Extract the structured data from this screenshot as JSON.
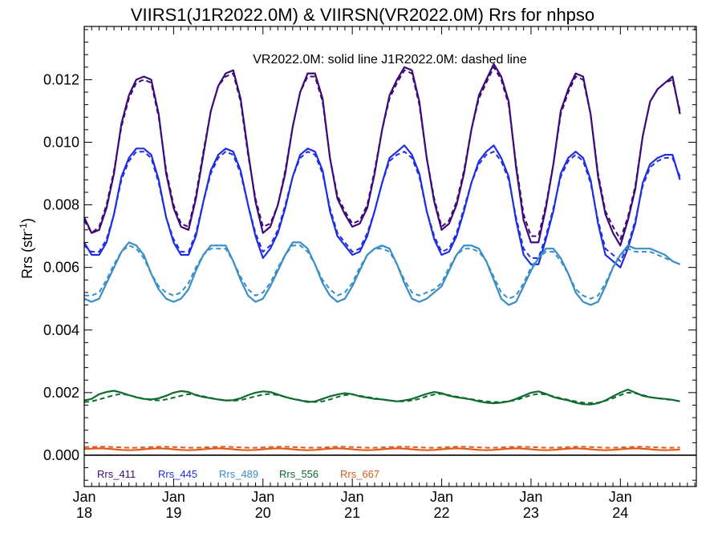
{
  "chart_data": {
    "type": "line",
    "title": "VIIRS1(J1R2022.0M) & VIIRSN(VR2022.0M)  Rrs for nhpso",
    "annotation": "VR2022.0M: solid line   J1R2022.0M: dashed line",
    "ylabel": "Rrs (str",
    "ylabel_sup": "-1",
    "ylabel_close": ")",
    "ylim": [
      -0.001,
      0.0137
    ],
    "xlim": [
      2018.0,
      2024.85
    ],
    "yticks": [
      {
        "v": 0.0,
        "label": "0.000"
      },
      {
        "v": 0.002,
        "label": "0.002"
      },
      {
        "v": 0.004,
        "label": "0.004"
      },
      {
        "v": 0.006,
        "label": "0.006"
      },
      {
        "v": 0.008,
        "label": "0.008"
      },
      {
        "v": 0.01,
        "label": "0.010"
      },
      {
        "v": 0.012,
        "label": "0.012"
      }
    ],
    "xticks": [
      {
        "v": 2018,
        "month": "Jan",
        "year": "18"
      },
      {
        "v": 2019,
        "month": "Jan",
        "year": "19"
      },
      {
        "v": 2020,
        "month": "Jan",
        "year": "20"
      },
      {
        "v": 2021,
        "month": "Jan",
        "year": "21"
      },
      {
        "v": 2022,
        "month": "Jan",
        "year": "22"
      },
      {
        "v": 2023,
        "month": "Jan",
        "year": "23"
      },
      {
        "v": 2024,
        "month": "Jan",
        "year": "24"
      }
    ],
    "x": [
      2018.0,
      2018.083,
      2018.167,
      2018.25,
      2018.333,
      2018.417,
      2018.5,
      2018.583,
      2018.667,
      2018.75,
      2018.833,
      2018.917,
      2019.0,
      2019.083,
      2019.167,
      2019.25,
      2019.333,
      2019.417,
      2019.5,
      2019.583,
      2019.667,
      2019.75,
      2019.833,
      2019.917,
      2020.0,
      2020.083,
      2020.167,
      2020.25,
      2020.333,
      2020.417,
      2020.5,
      2020.583,
      2020.667,
      2020.75,
      2020.833,
      2020.917,
      2021.0,
      2021.083,
      2021.167,
      2021.25,
      2021.333,
      2021.417,
      2021.5,
      2021.583,
      2021.667,
      2021.75,
      2021.833,
      2021.917,
      2022.0,
      2022.083,
      2022.167,
      2022.25,
      2022.333,
      2022.417,
      2022.5,
      2022.583,
      2022.667,
      2022.75,
      2022.833,
      2022.917,
      2023.0,
      2023.083,
      2023.167,
      2023.25,
      2023.333,
      2023.417,
      2023.5,
      2023.583,
      2023.667,
      2023.75,
      2023.833,
      2023.917,
      2024.0,
      2024.083,
      2024.167,
      2024.25,
      2024.333,
      2024.417,
      2024.5,
      2024.583,
      2024.667,
      2024.75,
      2024.833
    ],
    "series": [
      {
        "name": "Rrs_411",
        "color": "#3d0a7a",
        "solid": [
          0.0076,
          0.0071,
          0.0072,
          0.0079,
          0.009,
          0.0106,
          0.0115,
          0.012,
          0.0121,
          0.012,
          0.0109,
          0.009,
          0.0079,
          0.0073,
          0.0072,
          0.0082,
          0.0096,
          0.011,
          0.0118,
          0.0122,
          0.0123,
          0.0114,
          0.0097,
          0.0081,
          0.0071,
          0.0073,
          0.008,
          0.009,
          0.0105,
          0.0116,
          0.0122,
          0.0122,
          0.0114,
          0.0095,
          0.0082,
          0.0077,
          0.0073,
          0.0074,
          0.0079,
          0.009,
          0.0104,
          0.0115,
          0.012,
          0.0124,
          0.0123,
          0.0113,
          0.0095,
          0.0081,
          0.0072,
          0.0074,
          0.008,
          0.009,
          0.0104,
          0.0115,
          0.012,
          0.0125,
          0.0121,
          0.0113,
          0.0092,
          0.0075,
          0.0068,
          0.0068,
          0.0079,
          0.0093,
          0.011,
          0.0117,
          0.0122,
          0.0121,
          0.0109,
          0.0089,
          0.0077,
          0.0071,
          0.0067,
          0.0075,
          0.0085,
          0.0102,
          0.0113,
          0.0117,
          0.0119,
          0.0121,
          0.0109
        ],
        "dashed": [
          0.0075,
          0.0071,
          0.0073,
          0.008,
          0.0091,
          0.0105,
          0.0114,
          0.0119,
          0.012,
          0.0119,
          0.0108,
          0.0091,
          0.008,
          0.0074,
          0.0073,
          0.0083,
          0.0097,
          0.011,
          0.0118,
          0.0121,
          0.0122,
          0.0113,
          0.0096,
          0.0082,
          0.0073,
          0.0074,
          0.008,
          0.0091,
          0.0105,
          0.0116,
          0.0121,
          0.0121,
          0.0113,
          0.0095,
          0.0083,
          0.0078,
          0.0074,
          0.0075,
          0.008,
          0.0091,
          0.0104,
          0.0114,
          0.0119,
          0.0123,
          0.0122,
          0.0112,
          0.0095,
          0.0082,
          0.0073,
          0.0075,
          0.0081,
          0.0091,
          0.0104,
          0.0114,
          0.0119,
          0.0124,
          0.012,
          0.0112,
          0.0093,
          0.0077,
          0.007,
          0.007,
          0.008,
          0.0093,
          0.0109,
          0.0116,
          0.0121,
          0.012,
          0.0109,
          0.009,
          0.0078,
          0.0073,
          0.0069,
          0.0076,
          0.0086,
          0.0102,
          0.0113,
          0.0117,
          0.0119,
          0.012,
          0.011
        ]
      },
      {
        "name": "Rrs_445",
        "color": "#1f2fe0",
        "solid": [
          0.0068,
          0.0064,
          0.0064,
          0.0068,
          0.0077,
          0.0089,
          0.0095,
          0.0098,
          0.0098,
          0.0096,
          0.0088,
          0.0076,
          0.0068,
          0.0064,
          0.0064,
          0.007,
          0.0081,
          0.0091,
          0.0096,
          0.0098,
          0.0097,
          0.0091,
          0.008,
          0.007,
          0.0063,
          0.0066,
          0.0071,
          0.0079,
          0.0089,
          0.0096,
          0.0098,
          0.0097,
          0.0091,
          0.0078,
          0.007,
          0.0067,
          0.0064,
          0.0065,
          0.007,
          0.0078,
          0.0087,
          0.0095,
          0.0097,
          0.0099,
          0.0096,
          0.009,
          0.0078,
          0.0069,
          0.0064,
          0.0065,
          0.007,
          0.0078,
          0.0087,
          0.0094,
          0.0097,
          0.0099,
          0.0095,
          0.0089,
          0.0075,
          0.0064,
          0.0061,
          0.0061,
          0.0069,
          0.0078,
          0.009,
          0.0095,
          0.0097,
          0.0095,
          0.0088,
          0.0074,
          0.0064,
          0.0062,
          0.006,
          0.0066,
          0.0074,
          0.0087,
          0.0093,
          0.0095,
          0.0096,
          0.0096,
          0.0088
        ],
        "dashed": [
          0.0067,
          0.0065,
          0.0065,
          0.0069,
          0.0077,
          0.0088,
          0.0094,
          0.0097,
          0.0097,
          0.0095,
          0.0087,
          0.0076,
          0.0069,
          0.0065,
          0.0065,
          0.0071,
          0.0081,
          0.009,
          0.0095,
          0.0097,
          0.0096,
          0.009,
          0.008,
          0.0071,
          0.0065,
          0.0067,
          0.0072,
          0.008,
          0.0089,
          0.0095,
          0.0097,
          0.0096,
          0.009,
          0.0079,
          0.0071,
          0.0068,
          0.0065,
          0.0066,
          0.0071,
          0.0078,
          0.0087,
          0.0094,
          0.0096,
          0.0097,
          0.0095,
          0.0089,
          0.0078,
          0.007,
          0.0065,
          0.0066,
          0.0071,
          0.0079,
          0.0087,
          0.0093,
          0.0096,
          0.0097,
          0.0094,
          0.0088,
          0.0076,
          0.0066,
          0.0063,
          0.0063,
          0.007,
          0.0079,
          0.0089,
          0.0094,
          0.0096,
          0.0094,
          0.0087,
          0.0075,
          0.0066,
          0.0064,
          0.0062,
          0.0067,
          0.0075,
          0.0086,
          0.0092,
          0.0094,
          0.0095,
          0.0095,
          0.0089
        ]
      },
      {
        "name": "Rrs_489",
        "color": "#3a8ec6",
        "solid": [
          0.005,
          0.0049,
          0.005,
          0.0055,
          0.006,
          0.0065,
          0.0068,
          0.0067,
          0.0064,
          0.0058,
          0.0053,
          0.005,
          0.0049,
          0.005,
          0.0053,
          0.0059,
          0.0064,
          0.0067,
          0.0067,
          0.0067,
          0.0062,
          0.0056,
          0.0051,
          0.0049,
          0.005,
          0.0054,
          0.0059,
          0.0064,
          0.0068,
          0.0068,
          0.0066,
          0.0061,
          0.0055,
          0.0051,
          0.0049,
          0.005,
          0.0054,
          0.0059,
          0.0064,
          0.0066,
          0.0067,
          0.0066,
          0.0061,
          0.0055,
          0.005,
          0.0049,
          0.005,
          0.0052,
          0.0054,
          0.0059,
          0.0064,
          0.0067,
          0.0067,
          0.0066,
          0.0062,
          0.0056,
          0.005,
          0.0048,
          0.0049,
          0.0054,
          0.0059,
          0.0063,
          0.0066,
          0.0066,
          0.0063,
          0.0058,
          0.0052,
          0.0049,
          0.0048,
          0.0049,
          0.0054,
          0.006,
          0.0064,
          0.0067,
          0.0066,
          0.0066,
          0.0066,
          0.0065,
          0.0064,
          0.0062,
          0.0061
        ],
        "dashed": [
          0.0051,
          0.0051,
          0.0052,
          0.0056,
          0.0061,
          0.0065,
          0.0067,
          0.0066,
          0.0063,
          0.0058,
          0.0054,
          0.0052,
          0.0051,
          0.0052,
          0.0055,
          0.006,
          0.0064,
          0.0066,
          0.0066,
          0.0066,
          0.0062,
          0.0057,
          0.0053,
          0.0051,
          0.0052,
          0.0055,
          0.006,
          0.0064,
          0.0067,
          0.0067,
          0.0065,
          0.0061,
          0.0056,
          0.0053,
          0.0051,
          0.0052,
          0.0055,
          0.006,
          0.0064,
          0.0066,
          0.0066,
          0.0065,
          0.0061,
          0.0056,
          0.0052,
          0.0051,
          0.0052,
          0.0053,
          0.0055,
          0.006,
          0.0064,
          0.0066,
          0.0066,
          0.0065,
          0.0062,
          0.0057,
          0.0052,
          0.005,
          0.0051,
          0.0055,
          0.006,
          0.0063,
          0.0065,
          0.0065,
          0.0062,
          0.0058,
          0.0053,
          0.0051,
          0.005,
          0.0051,
          0.0055,
          0.006,
          0.0064,
          0.0066,
          0.0065,
          0.0065,
          0.0065,
          0.0064,
          0.0063,
          0.0062,
          0.0061
        ]
      },
      {
        "name": "Rrs_556",
        "color": "#0f6b2e",
        "solid": [
          0.00175,
          0.0018,
          0.00195,
          0.00202,
          0.00206,
          0.002,
          0.00192,
          0.00185,
          0.0018,
          0.00178,
          0.00182,
          0.0019,
          0.002,
          0.00205,
          0.00202,
          0.00192,
          0.00186,
          0.00182,
          0.00178,
          0.00175,
          0.00176,
          0.00182,
          0.00192,
          0.002,
          0.00204,
          0.00202,
          0.00194,
          0.00186,
          0.0018,
          0.00175,
          0.0017,
          0.00172,
          0.0018,
          0.00188,
          0.00194,
          0.00198,
          0.00195,
          0.00188,
          0.00184,
          0.0018,
          0.00178,
          0.00175,
          0.00172,
          0.00175,
          0.0018,
          0.00188,
          0.00196,
          0.00202,
          0.00198,
          0.0019,
          0.00185,
          0.00182,
          0.00178,
          0.00172,
          0.00168,
          0.00166,
          0.00168,
          0.00172,
          0.0018,
          0.0019,
          0.002,
          0.00204,
          0.00196,
          0.00186,
          0.0018,
          0.00175,
          0.00168,
          0.00163,
          0.00162,
          0.00166,
          0.00175,
          0.00188,
          0.002,
          0.0021,
          0.002,
          0.0019,
          0.00185,
          0.00182,
          0.0018,
          0.00177,
          0.00172
        ],
        "dashed": [
          0.0017,
          0.00172,
          0.00178,
          0.00185,
          0.00192,
          0.00196,
          0.00192,
          0.00186,
          0.0018,
          0.00176,
          0.00175,
          0.00178,
          0.00184,
          0.0019,
          0.00195,
          0.00193,
          0.00188,
          0.00183,
          0.00178,
          0.00175,
          0.00174,
          0.00176,
          0.00182,
          0.00188,
          0.00194,
          0.00196,
          0.00192,
          0.00186,
          0.0018,
          0.00176,
          0.00172,
          0.0017,
          0.00172,
          0.00178,
          0.00186,
          0.00192,
          0.00194,
          0.0019,
          0.00186,
          0.00182,
          0.00178,
          0.00175,
          0.00172,
          0.00172,
          0.00175,
          0.0018,
          0.00188,
          0.00194,
          0.00196,
          0.00192,
          0.00187,
          0.00183,
          0.00179,
          0.00175,
          0.00172,
          0.0017,
          0.0017,
          0.00172,
          0.00176,
          0.00184,
          0.00192,
          0.00196,
          0.00194,
          0.00188,
          0.00182,
          0.00177,
          0.00172,
          0.00168,
          0.00167,
          0.00168,
          0.00174,
          0.00182,
          0.00192,
          0.002,
          0.00198,
          0.00192,
          0.00186,
          0.00182,
          0.00179,
          0.00176,
          0.00173
        ]
      },
      {
        "name": "Rrs_667",
        "color": "#e05a1a",
        "solid": [
          0.0002,
          0.00021,
          0.00022,
          0.00021,
          0.00019,
          0.00017,
          0.00016,
          0.00017,
          0.00019,
          0.00021,
          0.00022,
          0.00021,
          0.00019,
          0.00017,
          0.00016,
          0.00017,
          0.00019,
          0.00021,
          0.00022,
          0.00021,
          0.00019,
          0.00017,
          0.00016,
          0.00017,
          0.00019,
          0.00021,
          0.00022,
          0.00021,
          0.00019,
          0.00017,
          0.00016,
          0.00017,
          0.00019,
          0.00021,
          0.00022,
          0.00021,
          0.00019,
          0.00017,
          0.00016,
          0.00017,
          0.00019,
          0.00021,
          0.00022,
          0.00021,
          0.00019,
          0.00017,
          0.00016,
          0.00017,
          0.00019,
          0.00021,
          0.00022,
          0.00021,
          0.00019,
          0.00017,
          0.00016,
          0.00017,
          0.00019,
          0.00021,
          0.00022,
          0.00021,
          0.00019,
          0.00017,
          0.00016,
          0.00017,
          0.00019,
          0.00021,
          0.00022,
          0.00021,
          0.00019,
          0.00017,
          0.00016,
          0.00017,
          0.00019,
          0.00021,
          0.00022,
          0.00021,
          0.00019,
          0.00017,
          0.00016,
          0.00017,
          0.00018
        ],
        "dashed": [
          0.00026,
          0.00026,
          0.00027,
          0.00027,
          0.00026,
          0.00025,
          0.00024,
          0.00024,
          0.00025,
          0.00026,
          0.00027,
          0.00027,
          0.00026,
          0.00025,
          0.00024,
          0.00024,
          0.00025,
          0.00026,
          0.00027,
          0.00027,
          0.00026,
          0.00025,
          0.00024,
          0.00024,
          0.00025,
          0.00026,
          0.00027,
          0.00027,
          0.00026,
          0.00025,
          0.00024,
          0.00024,
          0.00025,
          0.00026,
          0.00027,
          0.00027,
          0.00026,
          0.00025,
          0.00024,
          0.00024,
          0.00025,
          0.00026,
          0.00027,
          0.00027,
          0.00026,
          0.00025,
          0.00024,
          0.00024,
          0.00025,
          0.00026,
          0.00027,
          0.00027,
          0.00026,
          0.00025,
          0.00024,
          0.00024,
          0.00025,
          0.00026,
          0.00027,
          0.00027,
          0.00026,
          0.00025,
          0.00024,
          0.00024,
          0.00025,
          0.00026,
          0.00027,
          0.00027,
          0.00026,
          0.00025,
          0.00024,
          0.00024,
          0.00025,
          0.00026,
          0.00027,
          0.00027,
          0.00026,
          0.00025,
          0.00024,
          0.00024,
          0.00025
        ]
      }
    ]
  }
}
